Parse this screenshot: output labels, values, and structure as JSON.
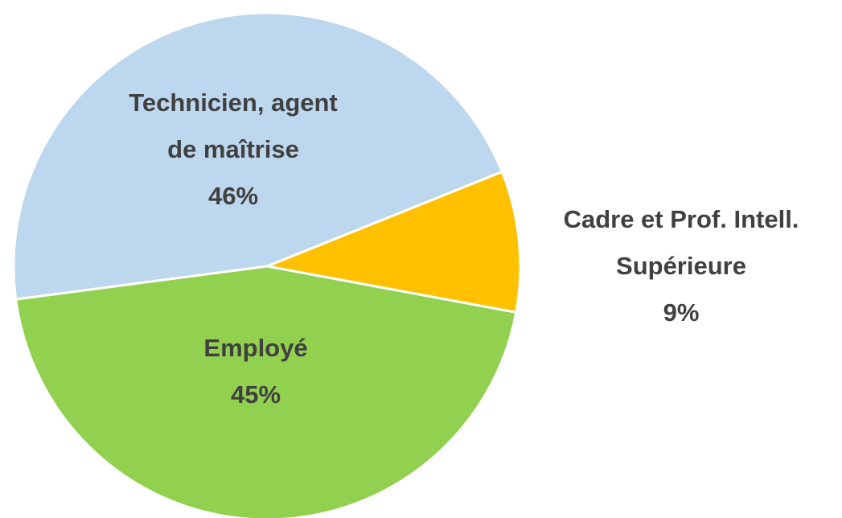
{
  "chart_data": {
    "type": "pie",
    "categories": [
      [
        "Cadre et Prof. Intell.",
        "Supérieure"
      ],
      [
        "Employé"
      ],
      [
        "Technicien, agent",
        "de maîtrise"
      ]
    ],
    "values": [
      9,
      45,
      46
    ],
    "value_labels": [
      "9%",
      "45%",
      "46%"
    ],
    "colors": [
      "#FFC000",
      "#92D050",
      "#BDD7EE"
    ]
  }
}
